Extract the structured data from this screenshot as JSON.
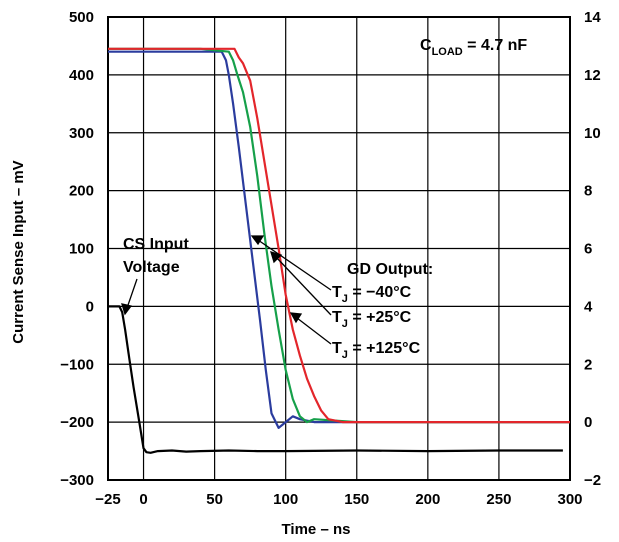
{
  "chart_data": {
    "type": "line",
    "xlabel": "Time – ns",
    "ylabel": "Current Sense Input – mV",
    "xlim": [
      -25,
      300
    ],
    "ylim": [
      -300,
      500
    ],
    "y2lim": [
      -2,
      14
    ],
    "grid": true,
    "x_ticks": [
      "−25",
      "0",
      "50",
      "100",
      "150",
      "200",
      "250",
      "300"
    ],
    "y_ticks": [
      "500",
      "400",
      "300",
      "200",
      "100",
      "0",
      "−100",
      "−200",
      "−300"
    ],
    "y2_ticks": [
      "14",
      "12",
      "10",
      "8",
      "6",
      "4",
      "2",
      "0",
      "−2"
    ],
    "colors": {
      "cs": "#000000",
      "tj_m40": "#2b3c9e",
      "tj_25": "#16a04a",
      "tj_125": "#e3262b"
    },
    "series": [
      {
        "key": "cs",
        "axis": "left",
        "x": [
          -25,
          -17,
          -15,
          -13,
          -10,
          -7,
          -3,
          0,
          2,
          5,
          10,
          20,
          30,
          40,
          60,
          80,
          100,
          150,
          200,
          250,
          295
        ],
        "y": [
          0,
          0,
          -10,
          -40,
          -90,
          -140,
          -200,
          -245,
          -252,
          -253,
          -250,
          -249,
          -251,
          -250,
          -249,
          -250,
          -250,
          -249,
          -250,
          -249,
          -249
        ]
      },
      {
        "key": "tj_m40",
        "axis": "right",
        "x": [
          -25,
          0,
          20,
          40,
          55,
          58,
          60,
          63,
          67,
          72,
          77,
          82,
          86,
          90,
          95,
          100,
          105,
          110,
          120,
          150,
          200,
          250,
          300
        ],
        "y": [
          12.8,
          12.8,
          12.8,
          12.8,
          12.8,
          12.5,
          12.0,
          11.0,
          9.5,
          7.5,
          5.5,
          3.5,
          1.8,
          0.3,
          -0.2,
          0.0,
          0.2,
          0.1,
          0.0,
          0.0,
          0.0,
          0.0,
          0.0
        ]
      },
      {
        "key": "tj_25",
        "axis": "right",
        "x": [
          -25,
          0,
          20,
          40,
          60,
          63,
          66,
          70,
          75,
          80,
          85,
          90,
          95,
          100,
          105,
          110,
          115,
          120,
          150,
          200,
          250,
          300
        ],
        "y": [
          12.9,
          12.9,
          12.9,
          12.9,
          12.8,
          12.5,
          12.0,
          11.4,
          10.2,
          8.5,
          6.5,
          4.7,
          3.2,
          1.8,
          0.8,
          0.2,
          0.0,
          0.1,
          0.0,
          0.0,
          0.0,
          0.0
        ]
      },
      {
        "key": "tj_125",
        "axis": "right",
        "x": [
          -25,
          0,
          20,
          40,
          60,
          64,
          67,
          70,
          75,
          80,
          85,
          90,
          95,
          100,
          105,
          110,
          115,
          120,
          125,
          130,
          140,
          150,
          200,
          250,
          300
        ],
        "y": [
          12.9,
          12.9,
          12.9,
          12.9,
          12.9,
          12.9,
          12.6,
          12.4,
          11.8,
          10.5,
          9.0,
          7.5,
          6.0,
          4.4,
          3.2,
          2.3,
          1.5,
          0.9,
          0.4,
          0.1,
          0.0,
          0.0,
          0.0,
          0.0,
          0.0
        ]
      }
    ],
    "annotations": {
      "cload": {
        "main": "C",
        "sub": "LOAD",
        "rest": " = 4.7 nF"
      },
      "cs_label_1": "CS Input",
      "cs_label_2": "Voltage",
      "gd_title": "GD Output:",
      "tj_m40": {
        "main": "T",
        "sub": "J",
        "rest": " = −40°C"
      },
      "tj_25": {
        "main": "T",
        "sub": "J",
        "rest": " = +25°C"
      },
      "tj_125": {
        "main": "T",
        "sub": "J",
        "rest": " = +125°C"
      }
    }
  }
}
